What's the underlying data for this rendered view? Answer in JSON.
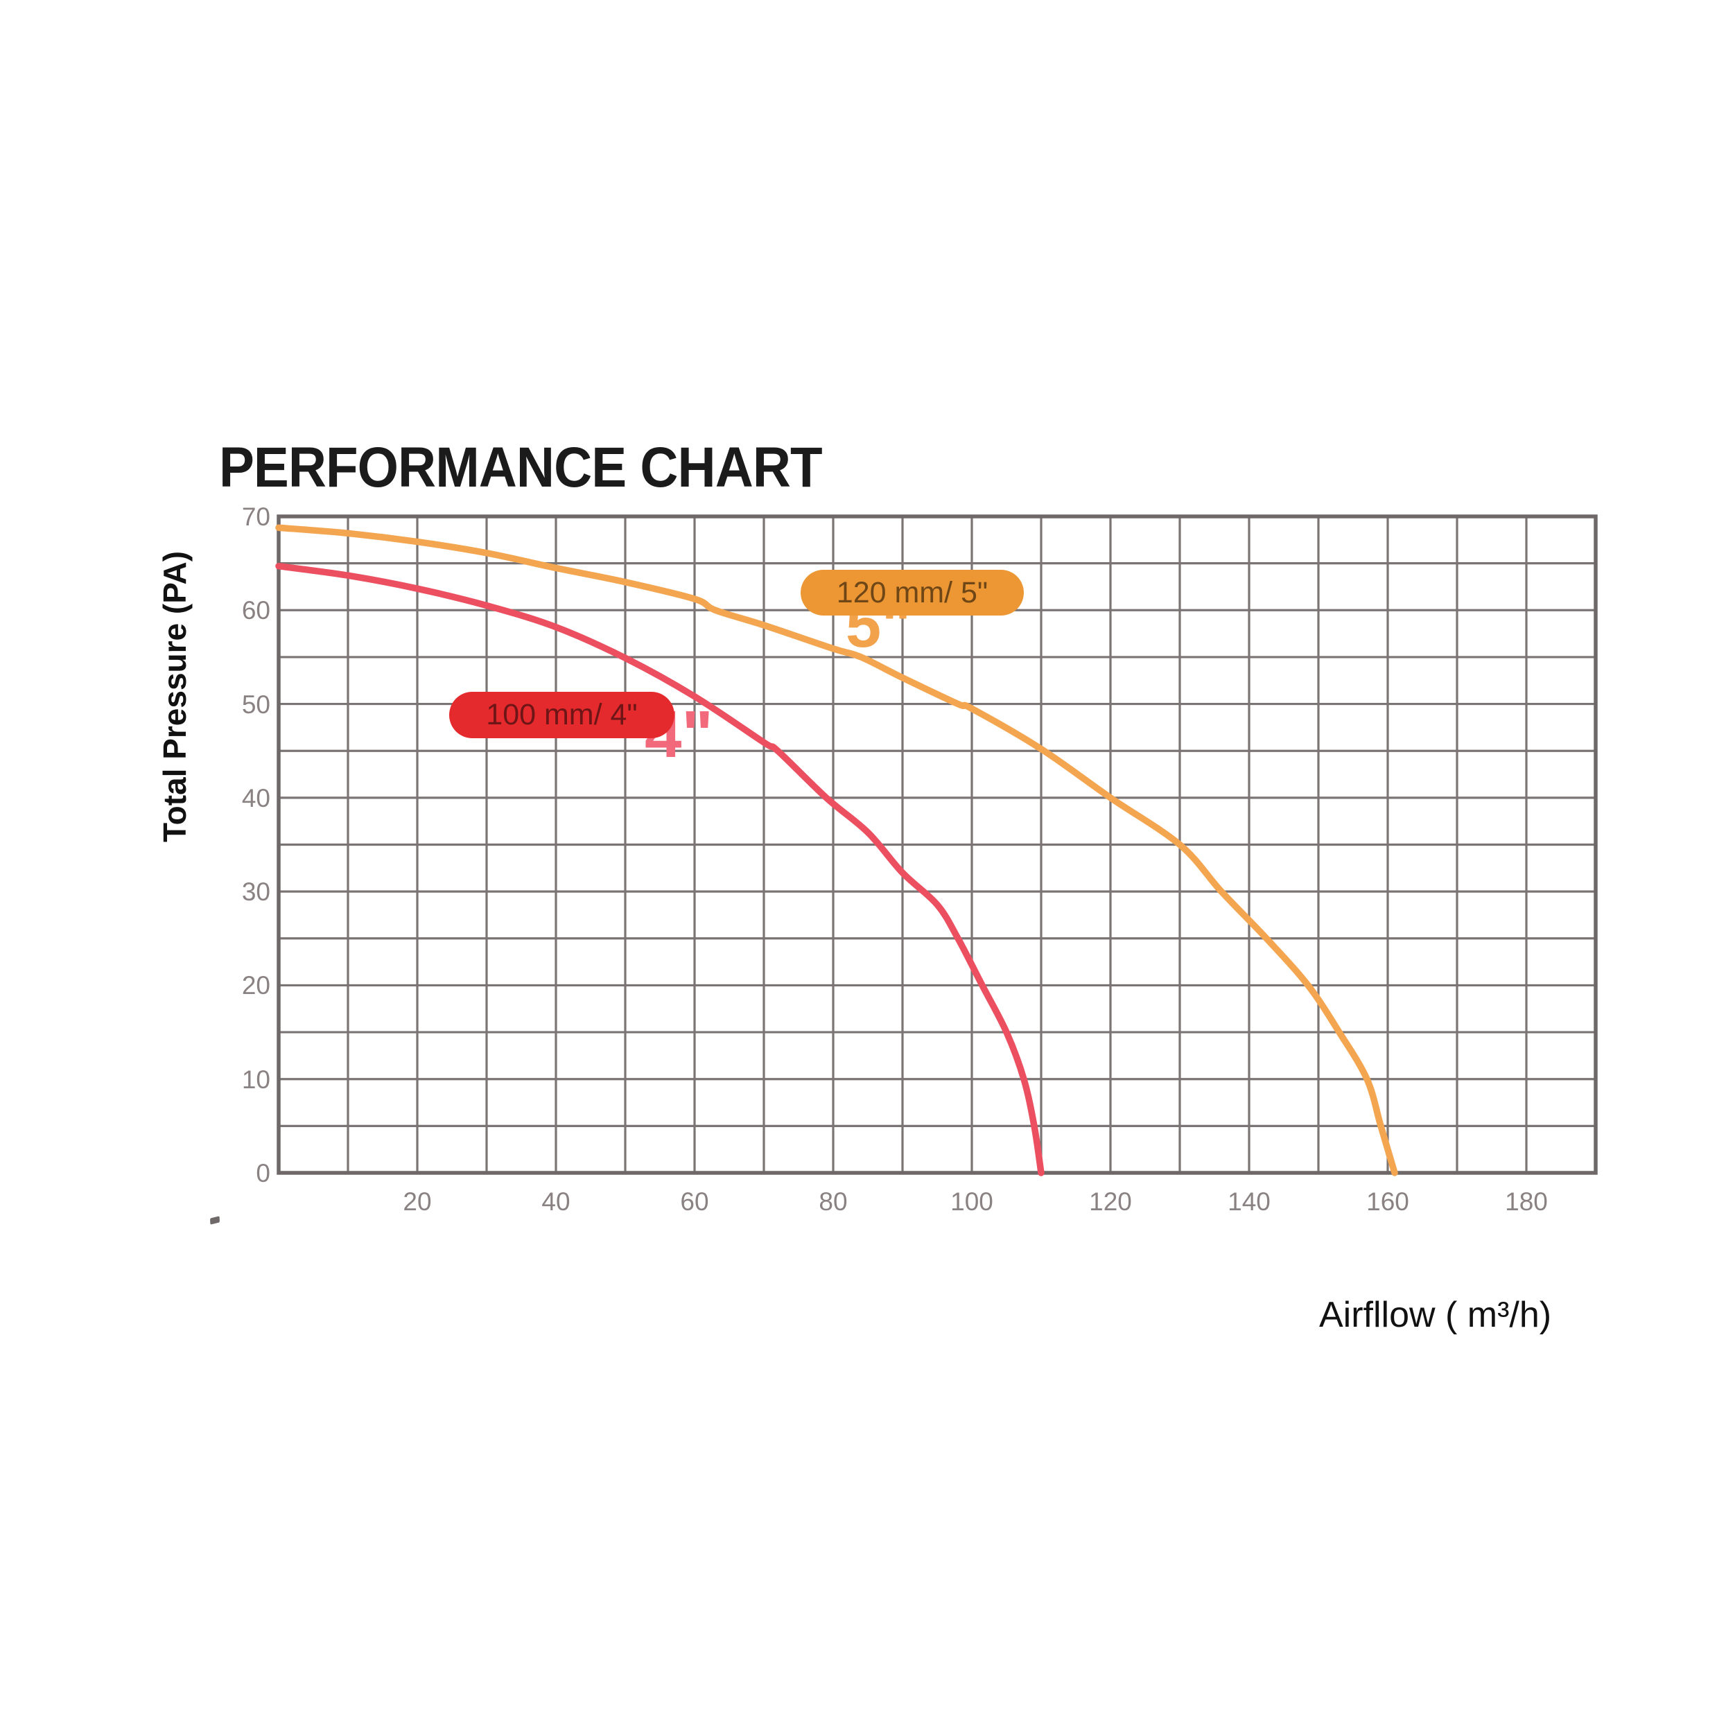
{
  "title": "PERFORMANCE CHART",
  "y_axis": {
    "label": "Total Pressure (PA)"
  },
  "x_axis": {
    "label": "Airfllow ( m³/h)"
  },
  "legend": {
    "orange": {
      "label": "120 mm/ 5\"",
      "ghost": "5\""
    },
    "red": {
      "label": "100 mm/ 4\"",
      "ghost": "4\""
    }
  },
  "colors": {
    "title_text": "#1b1b1b",
    "axis_title_text": "#111111",
    "tick_text": "#8a8282",
    "grid_line": "#7b7474",
    "plot_border": "#6f6868",
    "orange_curve": "#f4a54f",
    "red_curve": "#ec4f60",
    "orange_pill_bg": "#ec9734",
    "orange_pill_text": "#6f4717",
    "red_pill_bg": "#e42a2c",
    "red_pill_text": "#6e1517",
    "ghost_5": "#f3a24c",
    "ghost_4": "#f2697b"
  },
  "chart_data": {
    "type": "line",
    "title": "PERFORMANCE CHART",
    "xlabel": "Airfllow ( m³/h)",
    "ylabel": "Total Pressure (PA)",
    "xlim": [
      0,
      190
    ],
    "ylim": [
      0,
      70
    ],
    "x_ticks": [
      20,
      40,
      60,
      80,
      100,
      120,
      140,
      160,
      180
    ],
    "y_ticks": [
      0,
      10,
      20,
      30,
      40,
      50,
      60,
      70
    ],
    "grid_step": {
      "x": 10,
      "y": 5
    },
    "grid": true,
    "series": [
      {
        "name": "120 mm/ 5\"",
        "color": "#f4a54f",
        "points": [
          [
            0,
            68.8
          ],
          [
            10,
            68.2
          ],
          [
            20,
            67.3
          ],
          [
            30,
            66.1
          ],
          [
            40,
            64.5
          ],
          [
            50,
            63.0
          ],
          [
            60,
            61.2
          ],
          [
            63,
            60
          ],
          [
            70,
            58.4
          ],
          [
            80,
            55.9
          ],
          [
            84,
            55
          ],
          [
            90,
            52.8
          ],
          [
            98,
            50
          ],
          [
            100,
            49.5
          ],
          [
            110,
            45.2
          ],
          [
            120,
            40
          ],
          [
            130,
            35
          ],
          [
            136,
            30
          ],
          [
            142.5,
            25
          ],
          [
            148.5,
            20
          ],
          [
            153,
            15
          ],
          [
            157,
            10
          ],
          [
            159,
            5
          ],
          [
            161,
            0
          ]
        ]
      },
      {
        "name": "100 mm/ 4\"",
        "color": "#ec4f60",
        "points": [
          [
            0,
            64.7
          ],
          [
            10,
            63.7
          ],
          [
            20,
            62.3
          ],
          [
            30,
            60.5
          ],
          [
            40,
            58.2
          ],
          [
            50,
            54.9
          ],
          [
            60,
            50.8
          ],
          [
            70,
            45.9
          ],
          [
            72,
            45
          ],
          [
            79,
            40
          ],
          [
            85,
            36.3
          ],
          [
            90,
            32
          ],
          [
            95,
            28.6
          ],
          [
            98,
            25
          ],
          [
            101.5,
            20
          ],
          [
            105,
            15
          ],
          [
            107.5,
            10
          ],
          [
            109,
            5
          ],
          [
            110,
            0
          ]
        ]
      }
    ]
  }
}
